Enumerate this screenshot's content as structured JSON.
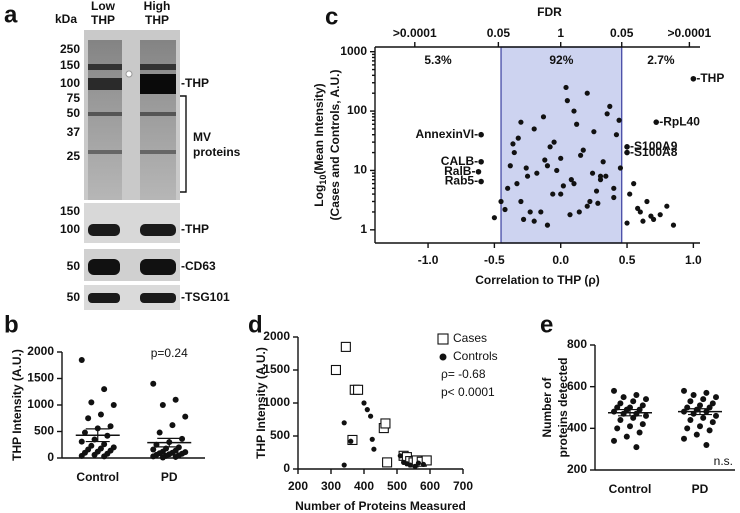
{
  "panel_a": {
    "panel": "a",
    "unit": "kDa",
    "lanes": [
      [
        "Low",
        "THP"
      ],
      [
        "High",
        "THP"
      ]
    ],
    "markers_top": [
      250,
      150,
      100,
      75,
      50,
      37,
      25
    ],
    "markers_bottom": [
      150,
      100,
      50,
      50
    ],
    "band_labels_top": [
      "-THP"
    ],
    "bracket_label": [
      "MV",
      "proteins"
    ],
    "band_labels_bottom": [
      "-THP",
      "-CD63",
      "-TSG101"
    ]
  },
  "chart_data": [
    {
      "type": "dotplot",
      "panel": "b",
      "ylabel": "THP Intensity (A.U.)",
      "categories": [
        "Control",
        "PD"
      ],
      "values": [
        [
          1850,
          1300,
          1050,
          1000,
          820,
          750,
          600,
          560,
          480,
          420,
          350,
          310,
          260,
          230,
          200,
          180,
          160,
          140,
          120,
          100,
          80,
          60,
          40,
          30
        ],
        [
          1400,
          1100,
          1000,
          780,
          620,
          480,
          360,
          300,
          250,
          200,
          180,
          160,
          140,
          120,
          110,
          100,
          90,
          80,
          70,
          60,
          50,
          40,
          30,
          20,
          10
        ]
      ],
      "means": [
        430,
        290
      ],
      "errors": [
        120,
        80
      ],
      "annotation": "p=0.24",
      "color": "#111111",
      "ylim": [
        0,
        2000
      ],
      "yticks": [
        0,
        500,
        1000,
        1500,
        2000
      ]
    },
    {
      "type": "scatter",
      "panel": "c",
      "title": "FDR",
      "ylabel": {
        "main": "Log",
        "sub": "10",
        "rest": "(Mean Intensity)",
        "line2": "(Cases and Controls, A.U.)"
      },
      "xlabel": "Correlation to THP (ρ)",
      "x": [
        -0.4,
        -0.35,
        -0.3,
        -0.25,
        -0.2,
        -0.15,
        -0.1,
        -0.05,
        0,
        0.05,
        0.1,
        0.15,
        0.2,
        0.25,
        0.3,
        0.35,
        0.4,
        -0.38,
        -0.28,
        -0.18,
        -0.08,
        0.02,
        0.12,
        0.22,
        0.32,
        0.42,
        -0.33,
        -0.23,
        -0.13,
        -0.03,
        0.07,
        0.17,
        0.27,
        0.37,
        -0.42,
        -0.32,
        -0.12,
        0.08,
        0.28,
        0.45,
        0.5,
        0.55,
        0.6,
        0.65,
        0.7,
        0.75,
        0.8,
        0.85,
        0.52,
        0.62,
        -0.45,
        -0.5,
        -0.3,
        -0.1,
        0.1,
        0.3,
        -0.2,
        0.0,
        0.2,
        0.4,
        -0.36,
        -0.06,
        0.14,
        0.34,
        0.58,
        0.68,
        -0.26,
        0.04,
        0.24,
        0.44
      ],
      "values": [
        5,
        20,
        3,
        8,
        50,
        2,
        12,
        30,
        4,
        150,
        6,
        18,
        2.5,
        45,
        7,
        90,
        3.5,
        12,
        1.5,
        9,
        25,
        5.5,
        60,
        3,
        14,
        40,
        6,
        2,
        80,
        10,
        1.8,
        22,
        4.5,
        120,
        2.2,
        35,
        15,
        7,
        2.8,
        11,
        1.3,
        6,
        2,
        3,
        1.5,
        1.8,
        2.5,
        1.2,
        4,
        1.4,
        3,
        1.6,
        65,
        1.2,
        100,
        8,
        1.4,
        16,
        200,
        5,
        28,
        4,
        2,
        8,
        2.3,
        1.7,
        11,
        250,
        9,
        70
      ],
      "labeled": [
        {
          "text": "-THP",
          "x": 1.0,
          "y": 350
        },
        {
          "text": "-RpL40",
          "x": 0.72,
          "y": 65
        },
        {
          "text": "-S100A9",
          "x": 0.5,
          "y": 25
        },
        {
          "text": "-S100A8",
          "x": 0.5,
          "y": 20
        },
        {
          "text": "AnnexinVI-",
          "x": -0.6,
          "y": 40
        },
        {
          "text": "CALB-",
          "x": -0.6,
          "y": 14
        },
        {
          "text": "RalB-",
          "x": -0.62,
          "y": 9.5
        },
        {
          "text": "Rab5-",
          "x": -0.6,
          "y": 6.5
        }
      ],
      "shade": [
        -0.45,
        0.46
      ],
      "shade_color": "#cdd3f0",
      "shade_edge": "#3a3fa0",
      "region_labels": [
        "5.3%",
        "92%",
        "2.7%"
      ],
      "color": "#111111",
      "ylog": true,
      "xlim": [
        -1.4,
        1.05
      ],
      "ylim": [
        0.6,
        1200
      ],
      "xticks": [
        {
          "value": -1.0,
          "label": "-1.0"
        },
        {
          "value": -0.5,
          "label": "-0.5"
        },
        {
          "value": 0,
          "label": "0.0"
        },
        {
          "value": 0.5,
          "label": "0.5"
        },
        {
          "value": 1.0,
          "label": "1.0"
        }
      ],
      "yticks": [
        1,
        10,
        100,
        1000
      ],
      "x2ticks": [
        {
          "value": -1.1,
          "label": ">0.0001"
        },
        {
          "value": -0.47,
          "label": "0.05"
        },
        {
          "value": 0,
          "label": "1"
        },
        {
          "value": 0.46,
          "label": "0.05"
        },
        {
          "value": 0.97,
          "label": ">0.0001"
        }
      ]
    },
    {
      "type": "scatter",
      "panel": "d",
      "ylabel": "THP Intensity (A.U.)",
      "xlabel": "Number of Proteins Measured",
      "series": [
        {
          "name": "Cases",
          "marker": "square",
          "color": "#111111",
          "x": [
            315,
            345,
            372,
            382,
            365,
            460,
            465,
            470,
            520,
            530,
            540,
            550,
            560,
            575,
            590
          ],
          "values": [
            1500,
            1850,
            1200,
            1200,
            440,
            620,
            690,
            100,
            200,
            180,
            120,
            100,
            130,
            110,
            130
          ]
        },
        {
          "name": "Controls",
          "marker": "circle",
          "color": "#111111",
          "x": [
            340,
            360,
            410,
            420,
            400,
            425,
            430,
            340,
            510,
            520,
            530,
            540,
            555,
            565,
            580
          ],
          "values": [
            700,
            420,
            900,
            800,
            1000,
            450,
            300,
            60,
            200,
            100,
            80,
            60,
            40,
            90,
            70
          ]
        }
      ],
      "annotations": [
        "ρ= -0.68",
        "p< 0.0001"
      ],
      "xlim": [
        200,
        700
      ],
      "ylim": [
        0,
        2000
      ],
      "xticks": [
        200,
        300,
        400,
        500,
        600,
        700
      ],
      "yticks": [
        0,
        500,
        1000,
        1500,
        2000
      ]
    },
    {
      "type": "dotplot",
      "panel": "e",
      "ylabel": [
        "Number of",
        "proteins detected"
      ],
      "categories": [
        "Control",
        "PD"
      ],
      "values": [
        [
          580,
          560,
          550,
          540,
          530,
          520,
          510,
          500,
          500,
          490,
          490,
          480,
          470,
          470,
          460,
          450,
          440,
          420,
          410,
          400,
          380,
          360,
          340,
          310
        ],
        [
          580,
          570,
          560,
          550,
          540,
          530,
          520,
          510,
          500,
          500,
          490,
          480,
          480,
          470,
          460,
          450,
          440,
          430,
          410,
          400,
          390,
          370,
          350,
          320
        ]
      ],
      "means": [
        475,
        480
      ],
      "errors": [
        15,
        14
      ],
      "annotation": "n.s.",
      "color": "#111111",
      "ylim": [
        200,
        800
      ],
      "yticks": [
        200,
        400,
        600,
        800
      ]
    }
  ]
}
